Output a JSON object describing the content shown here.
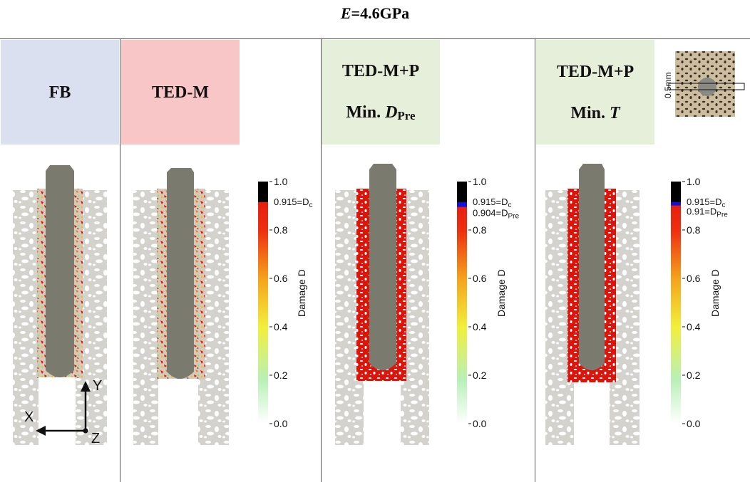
{
  "figure_title": {
    "var": "E",
    "rest": "=4.6GPa"
  },
  "panels": [
    {
      "header": "FB",
      "header_color": "#dbe0f1"
    },
    {
      "header": "TED-M",
      "header_color": "#f9c6c8"
    },
    {
      "header_line1": "TED-M+P",
      "header_line2_prefix": "Min. ",
      "header_line2_var": "D",
      "header_line2_sub": "Pre",
      "header_color": "#e5efda"
    },
    {
      "header_line1": "TED-M+P",
      "header_line2_prefix": "Min. ",
      "header_line2_var": "T",
      "header_color": "#e5efda"
    }
  ],
  "inset": {
    "scale_label": "0.5mm"
  },
  "axes_triad": {
    "x": "X",
    "y": "Y",
    "z": "Z"
  },
  "colorbars": [
    {
      "label": "Damage D",
      "ticks": [
        "1.0",
        "0.8",
        "0.6",
        "0.4",
        "0.2",
        "0.0"
      ],
      "dc_label": "0.915=D",
      "dc_sub": "c",
      "dc_value": 0.915
    },
    {
      "label": "Damage D",
      "ticks": [
        "1.0",
        "0.8",
        "0.6",
        "0.4",
        "0.2",
        "0.0"
      ],
      "dc_label": "0.915=D",
      "dc_sub": "c",
      "dc_value": 0.915,
      "dpre_label": "0.904=D",
      "dpre_sub": "Pre",
      "dpre_value": 0.904
    },
    {
      "label": "Damage D",
      "ticks": [
        "1.0",
        "0.8",
        "0.6",
        "0.4",
        "0.2",
        "0.0"
      ],
      "dc_label": "0.915=D",
      "dc_sub": "c",
      "dc_value": 0.915,
      "dpre_label": "0.91=D",
      "dpre_sub": "Pre",
      "dpre_value": 0.91
    }
  ],
  "colors": {
    "implant": "#7a7a6e",
    "bone": "#d4d2cc",
    "damage_high": "#d9150c",
    "damage_low": "#66e066",
    "marker_blue": "#1010e0"
  }
}
